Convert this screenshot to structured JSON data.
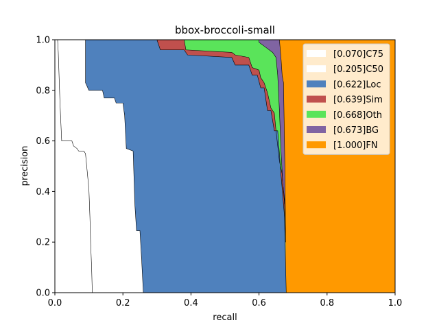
{
  "chart_data": {
    "type": "area",
    "title": "bbox-broccoli-small",
    "xlabel": "recall",
    "ylabel": "precision",
    "xlim": [
      0,
      1
    ],
    "ylim": [
      0,
      1
    ],
    "x_ticks": [
      "0.0",
      "0.2",
      "0.4",
      "0.6",
      "0.8",
      "1.0"
    ],
    "y_ticks": [
      "0.0",
      "0.2",
      "0.4",
      "0.6",
      "0.8",
      "1.0"
    ],
    "grid": false,
    "legend_position": "top-right",
    "series": [
      {
        "name": "[0.070]C75",
        "color": "#ffffff",
        "points": [
          [
            0.0,
            1.0
          ],
          [
            0.008,
            1.0
          ],
          [
            0.01,
            0.95
          ],
          [
            0.015,
            0.75
          ],
          [
            0.02,
            0.6
          ],
          [
            0.05,
            0.6
          ],
          [
            0.055,
            0.58
          ],
          [
            0.065,
            0.57
          ],
          [
            0.07,
            0.56
          ],
          [
            0.085,
            0.56
          ],
          [
            0.09,
            0.55
          ],
          [
            0.095,
            0.48
          ],
          [
            0.1,
            0.41
          ],
          [
            0.103,
            0.3
          ],
          [
            0.105,
            0.2
          ],
          [
            0.108,
            0.1
          ],
          [
            0.11,
            0.0
          ]
        ]
      },
      {
        "name": "[0.205]C50",
        "color": "#ffffff",
        "points": [
          [
            0.09,
            1.0
          ],
          [
            0.09,
            0.83
          ],
          [
            0.1,
            0.8
          ],
          [
            0.14,
            0.8
          ],
          [
            0.145,
            0.77
          ],
          [
            0.175,
            0.77
          ],
          [
            0.18,
            0.75
          ],
          [
            0.2,
            0.75
          ],
          [
            0.205,
            0.7
          ],
          [
            0.21,
            0.57
          ],
          [
            0.23,
            0.56
          ],
          [
            0.235,
            0.35
          ],
          [
            0.24,
            0.245
          ],
          [
            0.25,
            0.245
          ],
          [
            0.255,
            0.13
          ],
          [
            0.26,
            0.0
          ]
        ]
      },
      {
        "name": "[0.622]Loc",
        "color": "#4f81bd",
        "points": [
          [
            0.3,
            1.0
          ],
          [
            0.31,
            0.96
          ],
          [
            0.38,
            0.96
          ],
          [
            0.39,
            0.94
          ],
          [
            0.52,
            0.93
          ],
          [
            0.53,
            0.9
          ],
          [
            0.57,
            0.9
          ],
          [
            0.58,
            0.86
          ],
          [
            0.595,
            0.86
          ],
          [
            0.605,
            0.81
          ],
          [
            0.615,
            0.81
          ],
          [
            0.625,
            0.72
          ],
          [
            0.635,
            0.72
          ],
          [
            0.645,
            0.64
          ],
          [
            0.655,
            0.64
          ],
          [
            0.665,
            0.46
          ],
          [
            0.675,
            0.3
          ],
          [
            0.68,
            0.0
          ]
        ]
      },
      {
        "name": "[0.639]Sim",
        "color": "#c0504d",
        "points": [
          [
            0.38,
            1.0
          ],
          [
            0.385,
            0.96
          ],
          [
            0.52,
            0.95
          ],
          [
            0.53,
            0.94
          ],
          [
            0.57,
            0.93
          ],
          [
            0.58,
            0.89
          ],
          [
            0.6,
            0.88
          ],
          [
            0.605,
            0.85
          ],
          [
            0.615,
            0.83
          ],
          [
            0.625,
            0.79
          ],
          [
            0.635,
            0.73
          ],
          [
            0.645,
            0.71
          ],
          [
            0.65,
            0.64
          ],
          [
            0.66,
            0.52
          ],
          [
            0.668,
            0.47
          ],
          [
            0.675,
            0.35
          ]
        ]
      },
      {
        "name": "[0.668]Oth",
        "color": "#5ae45a",
        "points": [
          [
            0.6,
            1.0
          ],
          [
            0.6,
            0.99
          ],
          [
            0.62,
            0.97
          ],
          [
            0.64,
            0.95
          ],
          [
            0.65,
            0.93
          ],
          [
            0.655,
            0.86
          ],
          [
            0.66,
            0.72
          ],
          [
            0.665,
            0.55
          ],
          [
            0.67,
            0.43
          ],
          [
            0.675,
            0.37
          ],
          [
            0.678,
            0.2
          ]
        ]
      },
      {
        "name": "[0.673]BG",
        "color": "#8064a2",
        "points": [
          [
            0.66,
            1.0
          ],
          [
            0.665,
            0.92
          ],
          [
            0.668,
            0.86
          ],
          [
            0.672,
            0.83
          ],
          [
            0.676,
            0.5
          ],
          [
            0.678,
            0.2
          ]
        ]
      },
      {
        "name": "[1.000]FN",
        "color": "#ff9900",
        "points": [
          [
            1.0,
            1.0
          ],
          [
            1.0,
            0.0
          ]
        ]
      }
    ]
  }
}
